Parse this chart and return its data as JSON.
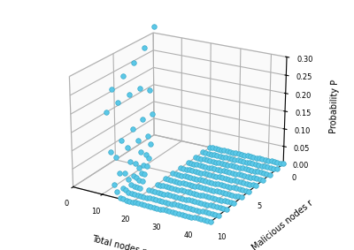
{
  "xlabel": "Total nodes n",
  "ylabel": "Malicious nodes r",
  "zlabel": "Probability P",
  "zlim": [
    0,
    0.3
  ],
  "zticks": [
    0,
    0.05,
    0.1,
    0.15,
    0.2,
    0.25,
    0.3
  ],
  "xticks": [
    0,
    10,
    20,
    30,
    40
  ],
  "yticks": [
    0,
    5,
    10
  ],
  "marker_color": "#5BC8E8",
  "marker_edge": "#3AAAC8",
  "marker_size": 16,
  "linewidth": 0.5,
  "background_color": "#ffffff",
  "pane_color": "#f5f5f5",
  "grid_color": "#d0d0d0",
  "figsize": [
    4.0,
    2.83
  ],
  "dpi": 100,
  "elev": 22,
  "azim": -60
}
